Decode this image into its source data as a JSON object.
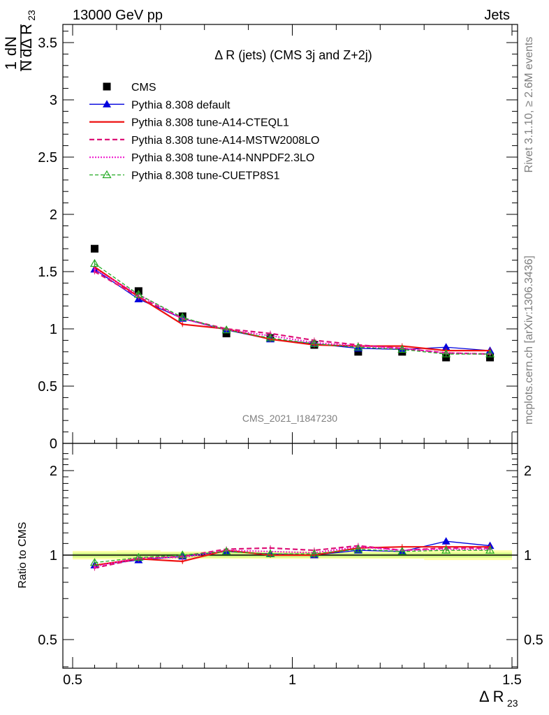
{
  "header": {
    "left": "13000 GeV pp",
    "right": "Jets"
  },
  "side_texts": {
    "rivet": "Rivet 3.1.10, ≥ 2.6M events",
    "mcplots": "mcplots.cern.ch [arXiv:1306.3436]"
  },
  "watermark": "CMS_2021_I1847230",
  "colors": {
    "cms": "#000000",
    "default": "#0000dd",
    "cteql1": "#ee1111",
    "mstw": "#dd1177",
    "nnpdf": "#ee11cc",
    "cuetp8s1": "#22aa22",
    "band_yellow": "#ffff66",
    "band_green": "#99ee55"
  },
  "chart_data": [
    {
      "type": "line",
      "title": "Δ R (jets) (CMS 3j and Z+2j)",
      "ylabel": {
        "frac_num": "1",
        "frac_den": "N",
        "d_num": "dN",
        "d_den": "dΔ R",
        "sub": "23"
      },
      "xlim": [
        0.5,
        1.5
      ],
      "ylim": [
        0,
        3.65
      ],
      "x_ticks": [
        "0.5",
        "1",
        "1.5"
      ],
      "y_ticks": [
        "0",
        "0.5",
        "1",
        "1.5",
        "2",
        "2.5",
        "3",
        "3.5"
      ],
      "x": [
        0.55,
        0.65,
        0.75,
        0.85,
        0.95,
        1.05,
        1.15,
        1.25,
        1.35,
        1.45
      ],
      "series": [
        {
          "name": "CMS",
          "style": "data",
          "values": [
            1.7,
            1.33,
            1.11,
            0.96,
            0.92,
            0.86,
            0.8,
            0.8,
            0.75,
            0.75
          ]
        },
        {
          "name": "Pythia 8.308 default",
          "style": "default",
          "values": [
            1.52,
            1.26,
            1.09,
            0.99,
            0.91,
            0.87,
            0.83,
            0.82,
            0.84,
            0.81
          ]
        },
        {
          "name": "Pythia 8.308 tune-A14-CTEQL1",
          "style": "cteql1",
          "values": [
            1.54,
            1.28,
            1.04,
            1.0,
            0.91,
            0.86,
            0.85,
            0.85,
            0.81,
            0.81
          ]
        },
        {
          "name": "Pythia 8.308 tune-A14-MSTW2008LO",
          "style": "mstw",
          "values": [
            1.5,
            1.28,
            1.09,
            1.0,
            0.96,
            0.9,
            0.86,
            0.83,
            0.79,
            0.78
          ]
        },
        {
          "name": "Pythia 8.308 tune-A14-NNPDF2.3LO",
          "style": "nnpdf",
          "values": [
            1.52,
            1.3,
            1.09,
            0.99,
            0.94,
            0.88,
            0.85,
            0.83,
            0.79,
            0.78
          ]
        },
        {
          "name": "Pythia 8.308 tune-CUETP8S1",
          "style": "cuetp8s1",
          "values": [
            1.57,
            1.3,
            1.1,
            0.99,
            0.92,
            0.87,
            0.84,
            0.82,
            0.78,
            0.78
          ]
        }
      ]
    },
    {
      "type": "line",
      "ylabel": "Ratio to CMS",
      "xlabel": {
        "main": "Δ R",
        "sub": "23"
      },
      "xlim": [
        0.5,
        1.5
      ],
      "ylim": [
        0.4,
        2.3
      ],
      "x_ticks": [
        "0.5",
        "1",
        "1.5"
      ],
      "y_ticks": [
        "0.5",
        "1",
        "2"
      ],
      "x": [
        0.55,
        0.65,
        0.75,
        0.85,
        0.95,
        1.05,
        1.15,
        1.25,
        1.35,
        1.45
      ],
      "band": {
        "inner": [
          0.02,
          0.02,
          0.02,
          0.02,
          0.02,
          0.02,
          0.02,
          0.02,
          0.02,
          0.02
        ],
        "outer": [
          0.035,
          0.04,
          0.03,
          0.03,
          0.03,
          0.03,
          0.03,
          0.03,
          0.04,
          0.04
        ]
      },
      "series": [
        {
          "name": "Pythia 8.308 default",
          "style": "default",
          "values": [
            0.92,
            0.96,
            0.99,
            1.03,
            1.01,
            1.0,
            1.04,
            1.03,
            1.12,
            1.08
          ]
        },
        {
          "name": "Pythia 8.308 tune-A14-CTEQL1",
          "style": "cteql1",
          "values": [
            0.92,
            0.97,
            0.95,
            1.04,
            1.0,
            1.0,
            1.06,
            1.07,
            1.07,
            1.07
          ]
        },
        {
          "name": "Pythia 8.308 tune-A14-MSTW2008LO",
          "style": "mstw",
          "values": [
            0.9,
            0.97,
            0.99,
            1.05,
            1.06,
            1.04,
            1.08,
            1.04,
            1.06,
            1.06
          ]
        },
        {
          "name": "Pythia 8.308 tune-A14-NNPDF2.3LO",
          "style": "nnpdf",
          "values": [
            0.91,
            0.98,
            0.98,
            1.04,
            1.03,
            1.02,
            1.07,
            1.04,
            1.05,
            1.05
          ]
        },
        {
          "name": "Pythia 8.308 tune-CUETP8S1",
          "style": "cuetp8s1",
          "values": [
            0.94,
            0.98,
            1.0,
            1.03,
            1.01,
            1.01,
            1.05,
            1.03,
            1.04,
            1.04
          ]
        }
      ]
    }
  ]
}
